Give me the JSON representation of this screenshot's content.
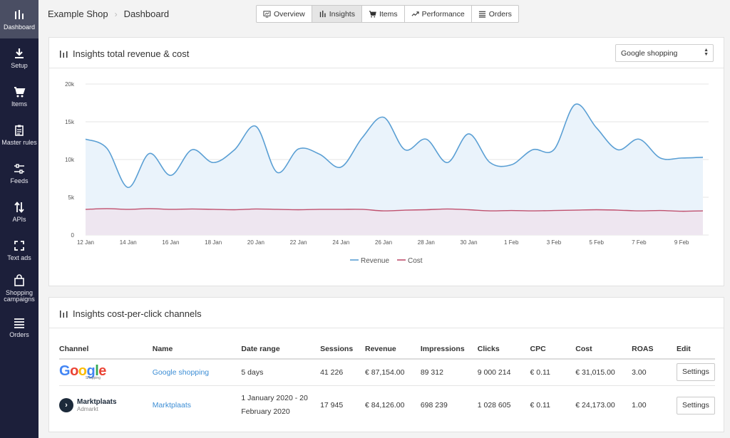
{
  "sidebar": {
    "items": [
      {
        "label": "Dashboard",
        "icon": "bar-chart-icon"
      },
      {
        "label": "Setup",
        "icon": "download-icon"
      },
      {
        "label": "Items",
        "icon": "cart-icon"
      },
      {
        "label": "Master rules",
        "icon": "clipboard-icon"
      },
      {
        "label": "Feeds",
        "icon": "sliders-icon"
      },
      {
        "label": "APIs",
        "icon": "arrows-vertical-icon"
      },
      {
        "label": "Text ads",
        "icon": "expand-icon"
      },
      {
        "label": "Shopping campaigns",
        "icon": "bag-icon"
      },
      {
        "label": "Orders",
        "icon": "list-icon"
      }
    ]
  },
  "header": {
    "shop": "Example Shop",
    "page": "Dashboard",
    "tabs": [
      {
        "label": "Overview",
        "icon": "overview-icon"
      },
      {
        "label": "Insights",
        "icon": "bar-chart-icon"
      },
      {
        "label": "Items",
        "icon": "cart-icon"
      },
      {
        "label": "Performance",
        "icon": "trend-icon"
      },
      {
        "label": "Orders",
        "icon": "list-icon"
      }
    ]
  },
  "revenue_card": {
    "title": "Insights total revenue & cost",
    "select_value": "Google shopping"
  },
  "chart_data": {
    "type": "area",
    "x": [
      "12 Jan",
      "13 Jan",
      "14 Jan",
      "15 Jan",
      "16 Jan",
      "17 Jan",
      "18 Jan",
      "19 Jan",
      "20 Jan",
      "21 Jan",
      "22 Jan",
      "23 Jan",
      "24 Jan",
      "25 Jan",
      "26 Jan",
      "27 Jan",
      "28 Jan",
      "29 Jan",
      "30 Jan",
      "31 Jan",
      "1 Feb",
      "2 Feb",
      "3 Feb",
      "4 Feb",
      "5 Feb",
      "6 Feb",
      "7 Feb",
      "8 Feb",
      "9 Feb",
      "10 Feb"
    ],
    "x_tick_labels": [
      "12 Jan",
      "14 Jan",
      "16 Jan",
      "18 Jan",
      "20 Jan",
      "22 Jan",
      "24 Jan",
      "26 Jan",
      "28 Jan",
      "30 Jan",
      "1 Feb",
      "3 Feb",
      "5 Feb",
      "7 Feb",
      "9 Feb"
    ],
    "y_tick_labels": [
      "0",
      "5k",
      "10k",
      "15k",
      "20k"
    ],
    "ylim": [
      0,
      20000
    ],
    "series": [
      {
        "name": "Revenue",
        "color": "#5a9fd4",
        "values": [
          12700,
          11500,
          6300,
          10800,
          7900,
          11300,
          9600,
          11300,
          14400,
          8300,
          11400,
          10700,
          9000,
          12900,
          15600,
          11300,
          12700,
          9600,
          13400,
          9600,
          9300,
          11300,
          11300,
          17300,
          14200,
          11300,
          12700,
          10200,
          10200,
          10300
        ]
      },
      {
        "name": "Cost",
        "color": "#c0506e",
        "values": [
          3400,
          3500,
          3400,
          3500,
          3400,
          3450,
          3400,
          3350,
          3450,
          3400,
          3350,
          3400,
          3400,
          3400,
          3200,
          3300,
          3350,
          3450,
          3350,
          3200,
          3250,
          3200,
          3250,
          3300,
          3350,
          3300,
          3200,
          3250,
          3150,
          3200
        ]
      }
    ],
    "grid": true,
    "legend": "bottom"
  },
  "cpc_card": {
    "title": "Insights cost-per-click channels",
    "columns": [
      "Channel",
      "Name",
      "Date range",
      "Sessions",
      "Revenue",
      "Impressions",
      "Clicks",
      "CPC",
      "Cost",
      "ROAS",
      "Edit"
    ],
    "rows": [
      {
        "channel_logo": "Google",
        "channel_sub": "Shopping",
        "name": "Google shopping",
        "date_range": "5 days",
        "sessions": "41 226",
        "revenue": "€ 87,154.00",
        "impressions": "89 312",
        "clicks": "9 000 214",
        "cpc": "€ 0.11",
        "cost": "€ 31,015.00",
        "roas": "3.00",
        "edit": "Settings"
      },
      {
        "channel_logo": "Marktplaats",
        "channel_sub": "Admarkt",
        "name": "Marktplaats",
        "date_range": "1 January 2020 - 20 February 2020",
        "sessions": "17 945",
        "revenue": "€ 84,126.00",
        "impressions": "698 239",
        "clicks": "1 028 605",
        "cpc": "€ 0.11",
        "cost": "€ 24,173.00",
        "roas": "1.00",
        "edit": "Settings"
      }
    ]
  }
}
